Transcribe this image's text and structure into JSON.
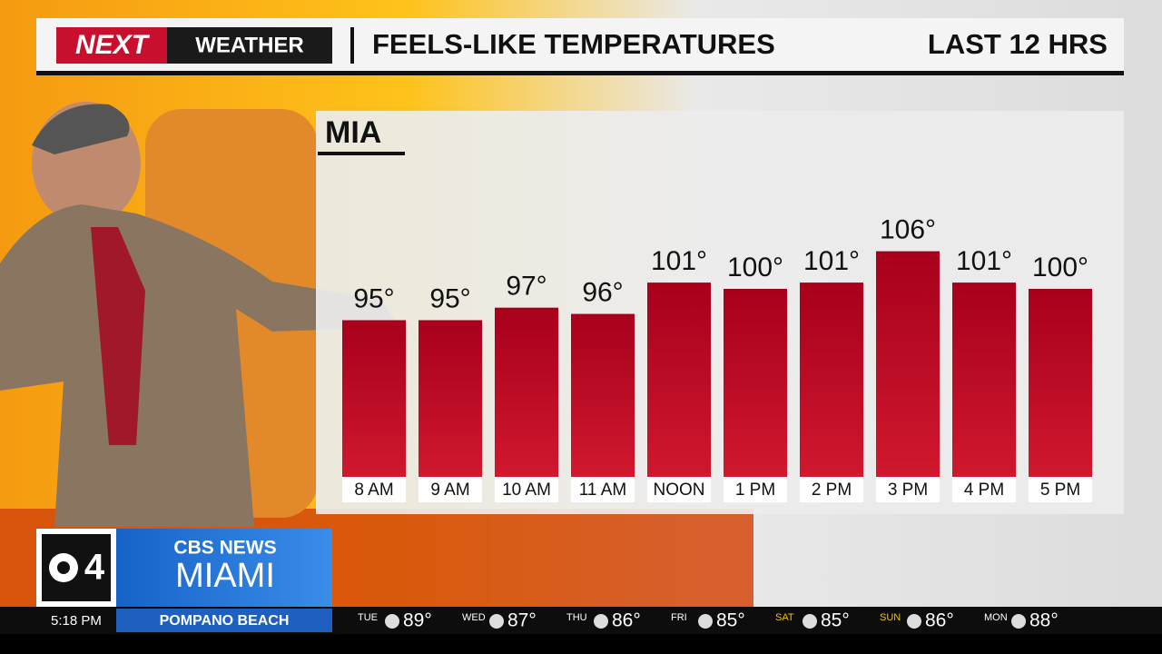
{
  "header": {
    "logo_next": "NEXT",
    "logo_weather": "WEATHER",
    "period": "LAST 12 HRS"
  },
  "chart_data": {
    "type": "bar",
    "title": "FEELS-LIKE TEMPERATURES",
    "subtitle": "MIA",
    "categories": [
      "8 AM",
      "9 AM",
      "10 AM",
      "11 AM",
      "NOON",
      "1 PM",
      "2 PM",
      "3 PM",
      "4 PM",
      "5 PM"
    ],
    "values": [
      95,
      95,
      97,
      96,
      101,
      100,
      101,
      106,
      101,
      100
    ],
    "value_labels": [
      "95°",
      "95°",
      "97°",
      "96°",
      "101°",
      "100°",
      "101°",
      "106°",
      "101°",
      "100°"
    ],
    "color": "#c0102a",
    "ylim": [
      70,
      110
    ]
  },
  "station": {
    "channel": "4",
    "network": "CBS NEWS",
    "city": "MIAMI"
  },
  "ticker": {
    "time": "5:18 PM",
    "location": "POMPANO BEACH",
    "forecast": [
      {
        "day": "TUE",
        "temp": "89°"
      },
      {
        "day": "WED",
        "temp": "87°"
      },
      {
        "day": "THU",
        "temp": "86°"
      },
      {
        "day": "FRI",
        "temp": "85°"
      },
      {
        "day": "SAT",
        "temp": "85°"
      },
      {
        "day": "SUN",
        "temp": "86°"
      },
      {
        "day": "MON",
        "temp": "88°"
      }
    ]
  }
}
